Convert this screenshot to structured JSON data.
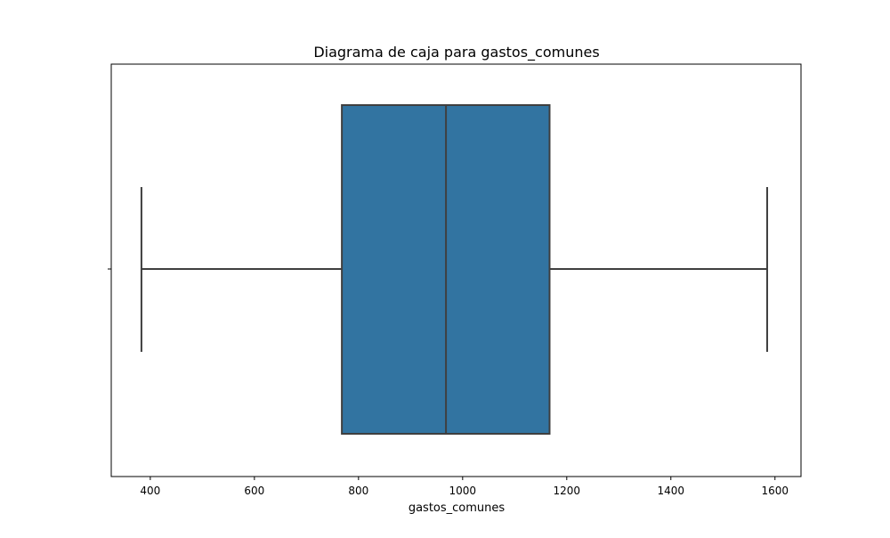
{
  "chart_data": {
    "type": "box",
    "title": "Diagrama de caja para gastos_comunes",
    "xlabel": "gastos_comunes",
    "ylabel": "",
    "orientation": "horizontal",
    "xlim": [
      325,
      1650
    ],
    "x_ticks": [
      400,
      600,
      800,
      1000,
      1200,
      1400,
      1600
    ],
    "grid": false,
    "box": {
      "whisker_low": 383,
      "q1": 768,
      "median": 968,
      "q3": 1167,
      "whisker_high": 1585
    },
    "colors": {
      "box_fill": "#3274a1",
      "line": "#3f3f3f",
      "frame": "#000000"
    }
  }
}
